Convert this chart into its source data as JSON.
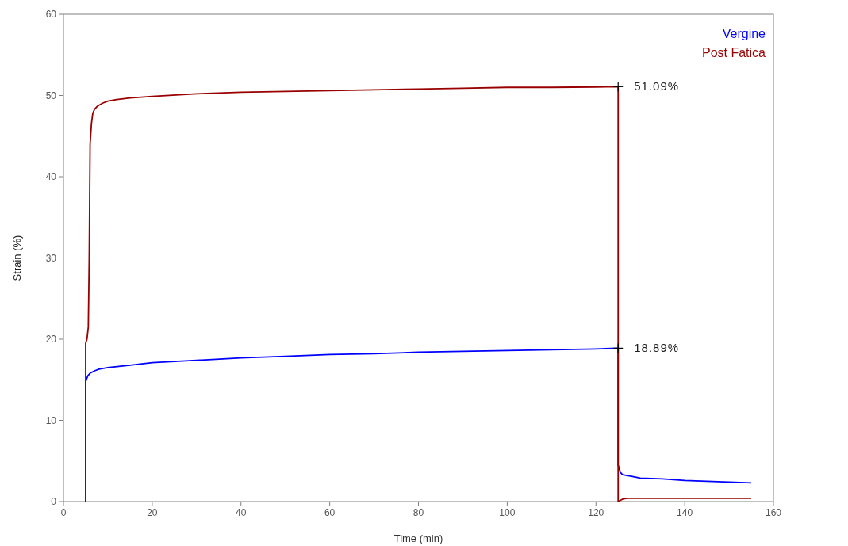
{
  "chart_data": {
    "type": "line",
    "xlabel": "Time (min)",
    "ylabel": "Strain (%)",
    "xlim": [
      0,
      160
    ],
    "ylim": [
      0,
      60
    ],
    "xticks": [
      0,
      20,
      40,
      60,
      80,
      100,
      120,
      140,
      160
    ],
    "yticks": [
      0,
      10,
      20,
      30,
      40,
      50,
      60
    ],
    "grid": false,
    "legend": "top right",
    "marker": "none",
    "line_style": "solid",
    "series": [
      {
        "name": "Vergine",
        "color": "#0000ff",
        "x": [
          5,
          5,
          5.5,
          6,
          7,
          8,
          10,
          15,
          20,
          30,
          40,
          50,
          60,
          70,
          80,
          90,
          100,
          110,
          120,
          125,
          125,
          125.5,
          126,
          128,
          130,
          135,
          140,
          145,
          150,
          155
        ],
        "values": [
          0,
          14.8,
          15.5,
          15.8,
          16.1,
          16.3,
          16.5,
          16.8,
          17.1,
          17.4,
          17.7,
          17.9,
          18.1,
          18.2,
          18.4,
          18.5,
          18.6,
          18.7,
          18.8,
          18.89,
          4.5,
          3.6,
          3.3,
          3.1,
          2.9,
          2.8,
          2.6,
          2.5,
          2.4,
          2.3
        ]
      },
      {
        "name": "Post Fatica",
        "color": "#990000",
        "x": [
          5,
          5,
          5.3,
          5.6,
          5.8,
          6,
          6.3,
          6.6,
          7,
          7.5,
          8,
          9,
          10,
          12,
          15,
          20,
          30,
          40,
          50,
          60,
          70,
          80,
          90,
          100,
          110,
          120,
          125,
          125,
          126,
          127,
          130,
          140,
          150,
          155
        ],
        "values": [
          0,
          19.5,
          20,
          21.5,
          30,
          44,
          46.5,
          47.8,
          48.3,
          48.6,
          48.8,
          49.1,
          49.3,
          49.5,
          49.7,
          49.9,
          50.2,
          50.4,
          50.5,
          50.6,
          50.7,
          50.8,
          50.9,
          51,
          51,
          51.05,
          51.09,
          0,
          0.3,
          0.4,
          0.4,
          0.4,
          0.4,
          0.4
        ]
      }
    ],
    "annotations": [
      {
        "text": "51.09%",
        "x": 125,
        "y": 51.09
      },
      {
        "text": "18.89%",
        "x": 125,
        "y": 18.89
      }
    ]
  }
}
